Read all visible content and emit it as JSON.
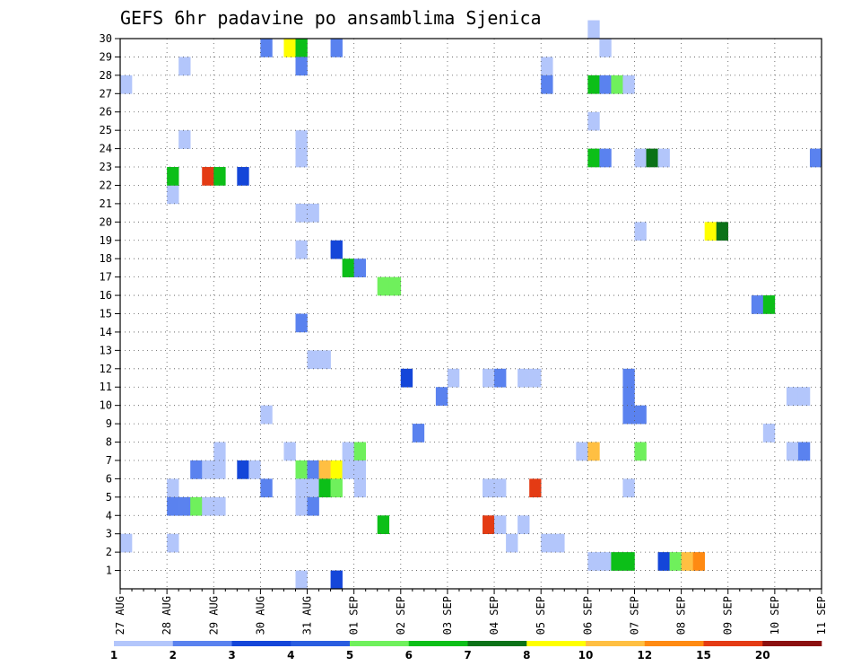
{
  "chart_data": {
    "type": "heatmap",
    "title": "GEFS 6hr padavine po ansamblima Sjenica",
    "xlabel": "",
    "ylabel": "",
    "x_labels": [
      "27 AUG",
      "28 AUG",
      "29 AUG",
      "30 AUG",
      "31 AUG",
      "01 SEP",
      "02 SEP",
      "03 SEP",
      "04 SEP",
      "05 SEP",
      "06 SEP",
      "07 SEP",
      "08 SEP",
      "09 SEP",
      "10 SEP",
      "11 SEP"
    ],
    "x_range_steps": [
      0,
      60
    ],
    "y_labels": [
      "1",
      "2",
      "3",
      "4",
      "5",
      "6",
      "7",
      "8",
      "9",
      "10",
      "11",
      "12",
      "13",
      "14",
      "15",
      "16",
      "17",
      "18",
      "19",
      "20",
      "21",
      "22",
      "23",
      "24",
      "25",
      "26",
      "27",
      "28",
      "29",
      "30"
    ],
    "y_range": [
      0,
      30
    ],
    "grid": true,
    "colorbar": {
      "labels": [
        "1",
        "2",
        "3",
        "4",
        "5",
        "6",
        "7",
        "8",
        "10",
        "12",
        "15",
        "20"
      ],
      "colors": [
        "#b3c6fb",
        "#5a82ef",
        "#1446d9",
        "#2a5de0",
        "#6ff05c",
        "#0cbf18",
        "#0b7218",
        "#ffff00",
        "#ffbf42",
        "#ff8a12",
        "#e43b14",
        "#8b1010"
      ]
    },
    "cells": [
      [
        0,
        27,
        1
      ],
      [
        0,
        2,
        1
      ],
      [
        4,
        21,
        1
      ],
      [
        4,
        22,
        6
      ],
      [
        4,
        5,
        1
      ],
      [
        4,
        4,
        2
      ],
      [
        4,
        2,
        1
      ],
      [
        5,
        28,
        1
      ],
      [
        5,
        24,
        1
      ],
      [
        5,
        4,
        2
      ],
      [
        6,
        4,
        5
      ],
      [
        6,
        6,
        2
      ],
      [
        7,
        4,
        1
      ],
      [
        7,
        6,
        1
      ],
      [
        8,
        4,
        1
      ],
      [
        8,
        6,
        1
      ],
      [
        8,
        7,
        1
      ],
      [
        7,
        22,
        15
      ],
      [
        8,
        22,
        6
      ],
      [
        10,
        22,
        3
      ],
      [
        10,
        6,
        3
      ],
      [
        11,
        6,
        1
      ],
      [
        12,
        29,
        2
      ],
      [
        12,
        5,
        2
      ],
      [
        12,
        9,
        1
      ],
      [
        14,
        7,
        1
      ],
      [
        14,
        29,
        8
      ],
      [
        15,
        29,
        6
      ],
      [
        15,
        6,
        5
      ],
      [
        15,
        5,
        1
      ],
      [
        15,
        4,
        1
      ],
      [
        15,
        28,
        2
      ],
      [
        15,
        23,
        1
      ],
      [
        15,
        24,
        1
      ],
      [
        15,
        20,
        1
      ],
      [
        15,
        18,
        1
      ],
      [
        15,
        14,
        2
      ],
      [
        15,
        0,
        1
      ],
      [
        16,
        20,
        1
      ],
      [
        16,
        12,
        1
      ],
      [
        16,
        6,
        2
      ],
      [
        16,
        5,
        1
      ],
      [
        16,
        4,
        2
      ],
      [
        17,
        12,
        1
      ],
      [
        17,
        6,
        10
      ],
      [
        17,
        5,
        6
      ],
      [
        18,
        29,
        2
      ],
      [
        18,
        18,
        3
      ],
      [
        18,
        6,
        8
      ],
      [
        18,
        5,
        5
      ],
      [
        18,
        0,
        3
      ],
      [
        19,
        17,
        6
      ],
      [
        19,
        7,
        1
      ],
      [
        19,
        6,
        1
      ],
      [
        20,
        17,
        2
      ],
      [
        20,
        7,
        5
      ],
      [
        20,
        6,
        1
      ],
      [
        20,
        5,
        1
      ],
      [
        22,
        16,
        5
      ],
      [
        23,
        16,
        5
      ],
      [
        22,
        3,
        6
      ],
      [
        24,
        11,
        3
      ],
      [
        25,
        8,
        2
      ],
      [
        27,
        10,
        2
      ],
      [
        28,
        11,
        1
      ],
      [
        31,
        3,
        15
      ],
      [
        31,
        11,
        1
      ],
      [
        31,
        5,
        1
      ],
      [
        32,
        11,
        2
      ],
      [
        32,
        5,
        1
      ],
      [
        32,
        3,
        1
      ],
      [
        33,
        2,
        1
      ],
      [
        34,
        11,
        1
      ],
      [
        34,
        3,
        1
      ],
      [
        35,
        11,
        1
      ],
      [
        35,
        5,
        15
      ],
      [
        36,
        2,
        1
      ],
      [
        36,
        28,
        1
      ],
      [
        36,
        27,
        2
      ],
      [
        37,
        2,
        1
      ],
      [
        39,
        7,
        1
      ],
      [
        40,
        7,
        10
      ],
      [
        40,
        30,
        1
      ],
      [
        40,
        25,
        1
      ],
      [
        40,
        27,
        6
      ],
      [
        40,
        23,
        6
      ],
      [
        40,
        1,
        1
      ],
      [
        41,
        29,
        1
      ],
      [
        41,
        27,
        2
      ],
      [
        41,
        23,
        2
      ],
      [
        41,
        1,
        1
      ],
      [
        42,
        27,
        5
      ],
      [
        42,
        1,
        6
      ],
      [
        43,
        27,
        1
      ],
      [
        43,
        1,
        6
      ],
      [
        43,
        11,
        2
      ],
      [
        43,
        10,
        2
      ],
      [
        43,
        9,
        2
      ],
      [
        43,
        5,
        1
      ],
      [
        44,
        9,
        2
      ],
      [
        44,
        23,
        1
      ],
      [
        44,
        19,
        1
      ],
      [
        44,
        7,
        5
      ],
      [
        45,
        23,
        7
      ],
      [
        46,
        23,
        1
      ],
      [
        46,
        1,
        3
      ],
      [
        47,
        1,
        5
      ],
      [
        48,
        1,
        10
      ],
      [
        49,
        1,
        12
      ],
      [
        50,
        19,
        8
      ],
      [
        51,
        19,
        7
      ],
      [
        54,
        15,
        2
      ],
      [
        55,
        15,
        6
      ],
      [
        55,
        8,
        1
      ],
      [
        57,
        10,
        1
      ],
      [
        57,
        7,
        1
      ],
      [
        58,
        10,
        1
      ],
      [
        58,
        7,
        2
      ],
      [
        59,
        23,
        2
      ]
    ]
  }
}
